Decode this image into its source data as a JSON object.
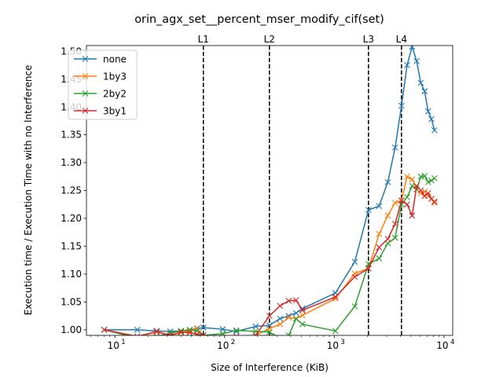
{
  "chart_data": {
    "type": "line",
    "title": "orin_agx_set__percent_mser_modify_cif(set)",
    "xlabel": "Size of Interference (KiB)",
    "ylabel": "Execution time / Execution Time with no Interference",
    "xscale": "log",
    "xlim": [
      5.5,
      12000
    ],
    "ylim": [
      0.99,
      1.51
    ],
    "grid": false,
    "legend_position": "top-left",
    "x_ticks": [
      {
        "value": 10,
        "label": "10",
        "sup": "1"
      },
      {
        "value": 100,
        "label": "10",
        "sup": "2"
      },
      {
        "value": 1000,
        "label": "10",
        "sup": "3"
      },
      {
        "value": 10000,
        "label": "10",
        "sup": "4"
      }
    ],
    "y_ticks": [
      1.0,
      1.1,
      1.2,
      1.3,
      1.4,
      1.5
    ],
    "y_tick_labels": [
      "1.00",
      "1.05",
      "1.10",
      "1.15",
      "1.20",
      "1.25",
      "1.30",
      "1.35",
      "1.40",
      "1.45",
      "1.50"
    ],
    "y_tick_values": [
      1.0,
      1.05,
      1.1,
      1.15,
      1.2,
      1.25,
      1.3,
      1.35,
      1.4,
      1.45,
      1.5
    ],
    "vlines": [
      {
        "label": "L1",
        "x": 64
      },
      {
        "label": "L2",
        "x": 256
      },
      {
        "label": "L3",
        "x": 2048
      },
      {
        "label": "L4",
        "x": 4096
      }
    ],
    "series": [
      {
        "name": "none",
        "color": "#1f77b4",
        "x": [
          8,
          16,
          24,
          32,
          40,
          48,
          56,
          64,
          96,
          128,
          192,
          256,
          320,
          384,
          448,
          512,
          1024,
          1536,
          2048,
          2560,
          3072,
          3584,
          4096,
          4608,
          5120,
          5632,
          6144,
          6656,
          7168,
          7680,
          8192
        ],
        "y": [
          1.0,
          1.0,
          0.998,
          0.997,
          0.998,
          1.0,
          1.002,
          1.004,
          1.001,
          0.997,
          1.006,
          1.008,
          1.02,
          1.025,
          1.03,
          1.038,
          1.066,
          1.122,
          1.215,
          1.222,
          1.265,
          1.327,
          1.402,
          1.475,
          1.508,
          1.482,
          1.443,
          1.428,
          1.392,
          1.378,
          1.358
        ]
      },
      {
        "name": "1by3",
        "color": "#ff7f0e",
        "x": [
          8,
          16,
          24,
          32,
          40,
          48,
          56,
          64,
          96,
          128,
          192,
          256,
          320,
          384,
          448,
          512,
          1024,
          1536,
          2048,
          2560,
          3072,
          3584,
          4096,
          4608,
          5120,
          5632,
          6144,
          6656,
          7168,
          7680,
          8192
        ],
        "y": [
          1.0,
          0.988,
          0.996,
          0.99,
          0.995,
          0.998,
          1.003,
          0.99,
          0.986,
          0.985,
          0.99,
          1.002,
          1.01,
          1.022,
          1.02,
          1.026,
          1.056,
          1.101,
          1.11,
          1.172,
          1.205,
          1.228,
          1.232,
          1.275,
          1.27,
          1.252,
          1.245,
          1.248,
          1.24,
          1.235,
          1.228
        ]
      },
      {
        "name": "2by2",
        "color": "#2ca02c",
        "x": [
          8,
          16,
          24,
          32,
          40,
          48,
          56,
          64,
          96,
          128,
          192,
          256,
          320,
          384,
          448,
          512,
          1024,
          1536,
          2048,
          2560,
          3072,
          3584,
          4096,
          4608,
          5120,
          5632,
          6144,
          6656,
          7168,
          7680,
          8192
        ],
        "y": [
          1.0,
          0.985,
          0.988,
          0.994,
          0.998,
          1.0,
          0.998,
          0.99,
          0.993,
          0.999,
          0.997,
          0.996,
          0.985,
          0.99,
          1.02,
          1.01,
          0.998,
          1.042,
          1.118,
          1.128,
          1.155,
          1.165,
          1.225,
          1.238,
          1.258,
          1.252,
          1.275,
          1.276,
          1.265,
          1.268,
          1.272
        ]
      },
      {
        "name": "3by1",
        "color": "#d62728",
        "x": [
          8,
          16,
          24,
          32,
          40,
          48,
          56,
          64,
          96,
          128,
          192,
          256,
          320,
          384,
          448,
          512,
          1024,
          1536,
          2048,
          2560,
          3072,
          3584,
          4096,
          4608,
          5120,
          5632,
          6144,
          6656,
          7168,
          7680,
          8192
        ],
        "y": [
          1.0,
          0.988,
          0.997,
          0.99,
          0.996,
          0.995,
          0.992,
          0.99,
          0.985,
          0.988,
          0.99,
          1.025,
          1.043,
          1.052,
          1.053,
          1.035,
          1.059,
          1.095,
          1.11,
          1.148,
          1.163,
          1.19,
          1.232,
          1.225,
          1.205,
          1.258,
          1.25,
          1.24,
          1.245,
          1.235,
          1.23
        ]
      }
    ]
  }
}
